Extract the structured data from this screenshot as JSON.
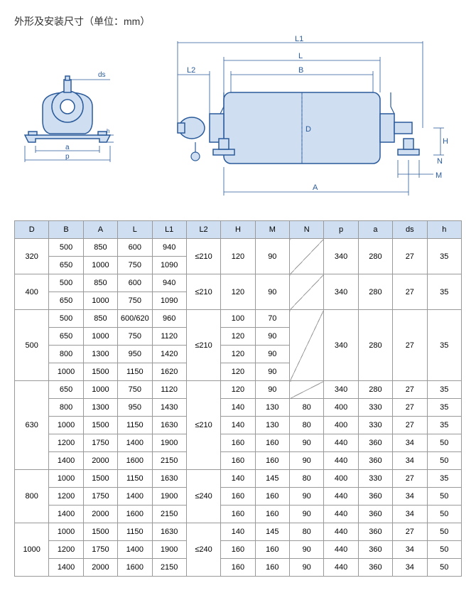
{
  "title": "外形及安装尺寸（单位：mm）",
  "diagram_labels": {
    "ds": "ds",
    "a": "a",
    "p": "p",
    "L1": "L1",
    "L": "L",
    "B": "B",
    "L2": "L2",
    "D": "D",
    "H": "H",
    "N": "N",
    "M": "M",
    "A": "A",
    "h": "h"
  },
  "diagram_colors": {
    "line": "#2a5a9a",
    "fill": "#cfdff1",
    "dim_line": "#2a5a9a",
    "text": "#2a5a9a"
  },
  "table": {
    "headers": [
      "D",
      "B",
      "A",
      "L",
      "L1",
      "L2",
      "H",
      "M",
      "N",
      "p",
      "a",
      "ds",
      "h"
    ],
    "groups": [
      {
        "D": "320",
        "L2": "≤210",
        "rows": [
          {
            "B": "500",
            "A": "850",
            "L": "600",
            "L1": "940",
            "H": "120",
            "M": "90",
            "N": "diag",
            "p": "340",
            "a": "280",
            "ds": "27",
            "h": "35"
          },
          {
            "B": "650",
            "A": "1000",
            "L": "750",
            "L1": "1090",
            "H": null,
            "M": null,
            "N": "diag",
            "p": null,
            "a": null,
            "ds": null,
            "h": null
          }
        ],
        "merge": {
          "L2": 2,
          "H": 2,
          "M": 2,
          "N": 2,
          "p": 2,
          "a": 2,
          "ds": 2,
          "h": 2
        }
      },
      {
        "D": "400",
        "L2": "≤210",
        "rows": [
          {
            "B": "500",
            "A": "850",
            "L": "600",
            "L1": "940",
            "H": "120",
            "M": "90",
            "N": "diag",
            "p": "340",
            "a": "280",
            "ds": "27",
            "h": "35"
          },
          {
            "B": "650",
            "A": "1000",
            "L": "750",
            "L1": "1090",
            "H": null,
            "M": null,
            "N": "diag",
            "p": null,
            "a": null,
            "ds": null,
            "h": null
          }
        ],
        "merge": {
          "L2": 2,
          "H": 2,
          "M": 2,
          "N": 2,
          "p": 2,
          "a": 2,
          "ds": 2,
          "h": 2
        }
      },
      {
        "D": "500",
        "L2": "≤210",
        "rows": [
          {
            "B": "500",
            "A": "850",
            "L": "600/620",
            "L1": "960",
            "H": "100",
            "M": "70",
            "N": "diag",
            "p": "340",
            "a": "280",
            "ds": "27",
            "h": "35"
          },
          {
            "B": "650",
            "A": "1000",
            "L": "750",
            "L1": "1120",
            "H": "120",
            "M": "90",
            "N": "diag",
            "p": null,
            "a": null,
            "ds": null,
            "h": null
          },
          {
            "B": "800",
            "A": "1300",
            "L": "950",
            "L1": "1420",
            "H": "120",
            "M": "90",
            "N": "diag",
            "p": null,
            "a": null,
            "ds": null,
            "h": null
          },
          {
            "B": "1000",
            "A": "1500",
            "L": "1150",
            "L1": "1620",
            "H": "120",
            "M": "90",
            "N": "diag",
            "p": null,
            "a": null,
            "ds": null,
            "h": null
          }
        ],
        "merge": {
          "L2": 4,
          "N": 4,
          "p": 4,
          "a": 4,
          "ds": 4,
          "h": 4
        }
      },
      {
        "D": "630",
        "L2": "≤210",
        "rows": [
          {
            "B": "650",
            "A": "1000",
            "L": "750",
            "L1": "1120",
            "H": "120",
            "M": "90",
            "N": "diag",
            "p": "340",
            "a": "280",
            "ds": "27",
            "h": "35"
          },
          {
            "B": "800",
            "A": "1300",
            "L": "950",
            "L1": "1430",
            "H": "140",
            "M": "130",
            "N": "80",
            "p": "400",
            "a": "330",
            "ds": "27",
            "h": "35"
          },
          {
            "B": "1000",
            "A": "1500",
            "L": "1150",
            "L1": "1630",
            "H": "140",
            "M": "130",
            "N": "80",
            "p": "400",
            "a": "330",
            "ds": "27",
            "h": "35"
          },
          {
            "B": "1200",
            "A": "1750",
            "L": "1400",
            "L1": "1900",
            "H": "160",
            "M": "160",
            "N": "90",
            "p": "440",
            "a": "360",
            "ds": "34",
            "h": "50"
          },
          {
            "B": "1400",
            "A": "2000",
            "L": "1600",
            "L1": "2150",
            "H": "160",
            "M": "160",
            "N": "90",
            "p": "440",
            "a": "360",
            "ds": "34",
            "h": "50"
          }
        ],
        "merge": {
          "L2": 5
        }
      },
      {
        "D": "800",
        "L2": "≤240",
        "rows": [
          {
            "B": "1000",
            "A": "1500",
            "L": "1150",
            "L1": "1630",
            "H": "140",
            "M": "145",
            "N": "80",
            "p": "400",
            "a": "330",
            "ds": "27",
            "h": "35"
          },
          {
            "B": "1200",
            "A": "1750",
            "L": "1400",
            "L1": "1900",
            "H": "160",
            "M": "160",
            "N": "90",
            "p": "440",
            "a": "360",
            "ds": "34",
            "h": "50"
          },
          {
            "B": "1400",
            "A": "2000",
            "L": "1600",
            "L1": "2150",
            "H": "160",
            "M": "160",
            "N": "90",
            "p": "440",
            "a": "360",
            "ds": "34",
            "h": "50"
          }
        ],
        "merge": {
          "L2": 3
        }
      },
      {
        "D": "1000",
        "L2": "≤240",
        "rows": [
          {
            "B": "1000",
            "A": "1500",
            "L": "1150",
            "L1": "1630",
            "H": "140",
            "M": "145",
            "N": "80",
            "p": "440",
            "a": "360",
            "ds": "27",
            "h": "50"
          },
          {
            "B": "1200",
            "A": "1750",
            "L": "1400",
            "L1": "1900",
            "H": "160",
            "M": "160",
            "N": "90",
            "p": "440",
            "a": "360",
            "ds": "34",
            "h": "50"
          },
          {
            "B": "1400",
            "A": "2000",
            "L": "1600",
            "L1": "2150",
            "H": "160",
            "M": "160",
            "N": "90",
            "p": "440",
            "a": "360",
            "ds": "34",
            "h": "50"
          }
        ],
        "merge": {
          "L2": 3
        }
      }
    ]
  }
}
